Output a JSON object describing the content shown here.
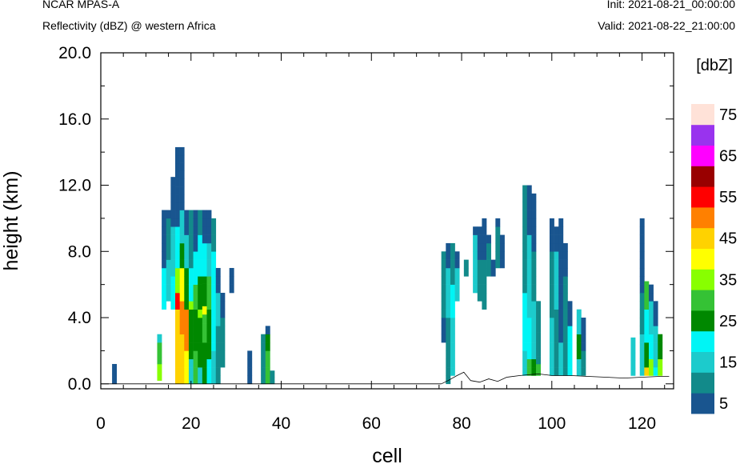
{
  "header": {
    "model": "NCAR MPAS-A",
    "field": "Reflectivity (dBZ) @ western Africa",
    "init": "Init: 2021-08-21_00:00:00",
    "valid": "Valid: 2021-08-22_21:00:00"
  },
  "chart_data": {
    "type": "heatmap",
    "xlabel": "cell",
    "ylabel": "height (km)",
    "xlim": [
      0,
      127
    ],
    "ylim": [
      -0.3,
      20.0
    ],
    "x_ticks": [
      "0",
      "20",
      "40",
      "60",
      "80",
      "100",
      "120"
    ],
    "y_ticks": [
      "0.0",
      "4.0",
      "8.0",
      "12.0",
      "16.0",
      "20.0"
    ],
    "x_tick_values": [
      0,
      20,
      40,
      60,
      80,
      100,
      120
    ],
    "y_tick_values": [
      0,
      4,
      8,
      12,
      16,
      20
    ],
    "grid": false,
    "colorbar": {
      "title": "[dbZ]",
      "levels": [
        5,
        10,
        15,
        20,
        25,
        30,
        35,
        40,
        45,
        50,
        55,
        60,
        65,
        70,
        75
      ],
      "labels": [
        "5",
        "15",
        "25",
        "35",
        "45",
        "55",
        "65",
        "75"
      ],
      "colors": [
        "#19558f",
        "#128a8a",
        "#1ccbcc",
        "#00f5f5",
        "#008800",
        "#35c235",
        "#88ff00",
        "#ffff00",
        "#ffd200",
        "#ff8000",
        "#ff0000",
        "#990000",
        "#ff00ff",
        "#9933ee",
        "#ffe2d8"
      ]
    },
    "cell_width": 1.0,
    "layer_height_km": 0.5,
    "column_bins": [
      {
        "x": 3,
        "bins": [
          [
            0,
            1.2,
            5
          ]
        ]
      },
      {
        "x": 13,
        "bins": [
          [
            0.2,
            1.2,
            35
          ],
          [
            1.2,
            2.5,
            30
          ],
          [
            2.5,
            3.0,
            15
          ]
        ]
      },
      {
        "x": 14,
        "bins": [
          [
            4.5,
            7.0,
            20
          ],
          [
            7.0,
            10.5,
            5
          ]
        ]
      },
      {
        "x": 15,
        "bins": [
          [
            5.0,
            7.5,
            15
          ],
          [
            7.5,
            10.0,
            10
          ],
          [
            10.0,
            10.5,
            5
          ]
        ]
      },
      {
        "x": 16,
        "bins": [
          [
            4.5,
            6.5,
            20
          ],
          [
            6.5,
            9.5,
            15
          ],
          [
            9.5,
            11.5,
            5
          ],
          [
            11.5,
            12.5,
            5
          ]
        ]
      },
      {
        "x": 17,
        "bins": [
          [
            0,
            4.5,
            45
          ],
          [
            4.5,
            5.5,
            55
          ],
          [
            5.5,
            7.0,
            35
          ],
          [
            7.0,
            9.5,
            20
          ],
          [
            9.5,
            14.3,
            5
          ]
        ]
      },
      {
        "x": 18,
        "bins": [
          [
            0,
            3.0,
            45
          ],
          [
            3.0,
            5.0,
            50
          ],
          [
            5.0,
            7.0,
            40
          ],
          [
            7.0,
            8.5,
            25
          ],
          [
            8.5,
            10.5,
            15
          ],
          [
            10.5,
            14.3,
            5
          ]
        ]
      },
      {
        "x": 19,
        "bins": [
          [
            0,
            2.0,
            40
          ],
          [
            2.0,
            4.5,
            50
          ],
          [
            4.5,
            7.0,
            25
          ],
          [
            7.0,
            9.0,
            15
          ],
          [
            9.0,
            10.5,
            5
          ]
        ]
      },
      {
        "x": 20,
        "bins": [
          [
            0,
            1.5,
            15
          ],
          [
            1.5,
            4.5,
            25
          ],
          [
            4.5,
            5.0,
            35
          ],
          [
            5.0,
            7.0,
            20
          ],
          [
            7.0,
            10.5,
            10
          ]
        ]
      },
      {
        "x": 21,
        "bins": [
          [
            0,
            2.0,
            30
          ],
          [
            2.0,
            4.5,
            25
          ],
          [
            4.5,
            6.0,
            30
          ],
          [
            6.0,
            8.0,
            20
          ],
          [
            8.0,
            10.5,
            5
          ]
        ]
      },
      {
        "x": 22,
        "bins": [
          [
            0,
            1.0,
            15
          ],
          [
            1.0,
            4.0,
            25
          ],
          [
            4.0,
            4.5,
            35
          ],
          [
            4.5,
            6.5,
            25
          ],
          [
            6.5,
            9.0,
            20
          ],
          [
            9.0,
            10.5,
            10
          ]
        ]
      },
      {
        "x": 23,
        "bins": [
          [
            0,
            2.5,
            25
          ],
          [
            2.5,
            4.2,
            30
          ],
          [
            4.2,
            4.7,
            40
          ],
          [
            4.7,
            6.5,
            25
          ],
          [
            6.5,
            8.5,
            20
          ],
          [
            8.5,
            10.5,
            5
          ]
        ]
      },
      {
        "x": 24,
        "bins": [
          [
            0,
            1.5,
            20
          ],
          [
            1.5,
            4.5,
            25
          ],
          [
            4.5,
            6.5,
            30
          ],
          [
            6.5,
            8.5,
            15
          ],
          [
            8.5,
            10.5,
            5
          ]
        ]
      },
      {
        "x": 25,
        "bins": [
          [
            0,
            2.0,
            15
          ],
          [
            2.0,
            4.5,
            20
          ],
          [
            4.5,
            8.0,
            20
          ],
          [
            8.0,
            10.0,
            10
          ]
        ]
      },
      {
        "x": 26,
        "bins": [
          [
            0,
            3.5,
            10
          ],
          [
            3.5,
            5.5,
            15
          ],
          [
            5.5,
            7.0,
            5
          ]
        ]
      },
      {
        "x": 27,
        "bins": [
          [
            1.0,
            4.0,
            10
          ],
          [
            4.0,
            5.5,
            5
          ]
        ]
      },
      {
        "x": 29,
        "bins": [
          [
            5.5,
            7.0,
            5
          ]
        ]
      },
      {
        "x": 33,
        "bins": [
          [
            0,
            2.0,
            5
          ]
        ]
      },
      {
        "x": 36,
        "bins": [
          [
            0,
            3.0,
            10
          ]
        ]
      },
      {
        "x": 37,
        "bins": [
          [
            0,
            2.0,
            30
          ],
          [
            2.0,
            3.0,
            25
          ],
          [
            3.0,
            3.5,
            5
          ]
        ]
      },
      {
        "x": 38,
        "bins": [
          [
            0,
            0.8,
            10
          ]
        ]
      },
      {
        "x": 76,
        "bins": [
          [
            2.5,
            4.0,
            5
          ],
          [
            4.0,
            8.0,
            10
          ]
        ]
      },
      {
        "x": 77,
        "bins": [
          [
            0,
            4.0,
            10
          ],
          [
            4.0,
            7.0,
            15
          ],
          [
            7.0,
            8.5,
            5
          ]
        ]
      },
      {
        "x": 78,
        "bins": [
          [
            0.5,
            4.0,
            15
          ],
          [
            4.0,
            6.0,
            20
          ],
          [
            6.0,
            8.5,
            10
          ]
        ]
      },
      {
        "x": 79,
        "bins": [
          [
            5.0,
            7.0,
            15
          ],
          [
            7.0,
            8.0,
            5
          ]
        ]
      },
      {
        "x": 81,
        "bins": [
          [
            6.5,
            7.5,
            10
          ]
        ]
      },
      {
        "x": 83,
        "bins": [
          [
            5.5,
            9.0,
            15
          ],
          [
            9.0,
            9.5,
            5
          ]
        ]
      },
      {
        "x": 84,
        "bins": [
          [
            5.0,
            7.5,
            10
          ],
          [
            7.5,
            9.5,
            5
          ]
        ]
      },
      {
        "x": 85,
        "bins": [
          [
            4.5,
            7.5,
            10
          ],
          [
            7.5,
            10.0,
            5
          ]
        ]
      },
      {
        "x": 86,
        "bins": [
          [
            6.5,
            8.5,
            10
          ],
          [
            8.5,
            9.0,
            5
          ]
        ]
      },
      {
        "x": 87,
        "bins": [
          [
            6.5,
            7.5,
            5
          ]
        ]
      },
      {
        "x": 88,
        "bins": [
          [
            7.0,
            9.5,
            10
          ],
          [
            9.5,
            10.0,
            5
          ]
        ]
      },
      {
        "x": 89,
        "bins": [
          [
            7.0,
            9.0,
            5
          ]
        ]
      },
      {
        "x": 94,
        "bins": [
          [
            0.5,
            2.0,
            15
          ],
          [
            2.0,
            5.5,
            20
          ],
          [
            5.5,
            12.0,
            10
          ]
        ]
      },
      {
        "x": 95,
        "bins": [
          [
            0.5,
            1.5,
            30
          ],
          [
            1.5,
            4.0,
            20
          ],
          [
            4.0,
            9.0,
            15
          ],
          [
            9.0,
            12.0,
            5
          ]
        ]
      },
      {
        "x": 96,
        "bins": [
          [
            0.5,
            1.5,
            25
          ],
          [
            1.5,
            5.0,
            15
          ],
          [
            5.0,
            8.0,
            10
          ],
          [
            8.0,
            11.5,
            5
          ]
        ]
      },
      {
        "x": 97,
        "bins": [
          [
            0.5,
            1.2,
            30
          ],
          [
            1.2,
            5.0,
            10
          ]
        ]
      },
      {
        "x": 100,
        "bins": [
          [
            0.5,
            4.0,
            15
          ],
          [
            4.0,
            8.0,
            10
          ],
          [
            8.0,
            10.0,
            5
          ]
        ]
      },
      {
        "x": 101,
        "bins": [
          [
            0.5,
            4.5,
            10
          ],
          [
            4.5,
            8.0,
            15
          ],
          [
            8.0,
            9.5,
            5
          ]
        ]
      },
      {
        "x": 102,
        "bins": [
          [
            0.5,
            2.5,
            15
          ],
          [
            2.5,
            10.0,
            5
          ]
        ]
      },
      {
        "x": 103,
        "bins": [
          [
            0.5,
            6.5,
            10
          ],
          [
            6.5,
            8.5,
            5
          ]
        ]
      },
      {
        "x": 104,
        "bins": [
          [
            0.5,
            3.5,
            20
          ],
          [
            3.5,
            5.0,
            5
          ]
        ]
      },
      {
        "x": 106,
        "bins": [
          [
            0.5,
            1.5,
            15
          ],
          [
            1.5,
            3.0,
            25
          ],
          [
            3.0,
            4.5,
            15
          ]
        ]
      },
      {
        "x": 107,
        "bins": [
          [
            0.5,
            2.0,
            10
          ],
          [
            2.0,
            4.0,
            5
          ]
        ]
      },
      {
        "x": 118,
        "bins": [
          [
            0.5,
            2.8,
            15
          ]
        ]
      },
      {
        "x": 120,
        "bins": [
          [
            0.5,
            3.0,
            15
          ],
          [
            3.0,
            5.5,
            10
          ],
          [
            5.5,
            10.0,
            5
          ]
        ]
      },
      {
        "x": 121,
        "bins": [
          [
            0.5,
            1.0,
            45
          ],
          [
            1.0,
            2.5,
            25
          ],
          [
            2.5,
            4.5,
            20
          ],
          [
            4.5,
            6.2,
            30
          ]
        ]
      },
      {
        "x": 122,
        "bins": [
          [
            0.5,
            1.5,
            35
          ],
          [
            1.5,
            3.0,
            20
          ],
          [
            3.0,
            5.0,
            15
          ],
          [
            5.0,
            6.0,
            5
          ]
        ]
      },
      {
        "x": 123,
        "bins": [
          [
            0.5,
            1.0,
            20
          ],
          [
            1.0,
            3.5,
            15
          ],
          [
            3.5,
            5.0,
            5
          ]
        ]
      },
      {
        "x": 124,
        "bins": [
          [
            0.5,
            1.5,
            35
          ],
          [
            1.5,
            3.0,
            25
          ]
        ]
      }
    ],
    "terrain_profile": [
      [
        75.5,
        0
      ],
      [
        77,
        0.2
      ],
      [
        79,
        0.5
      ],
      [
        80.5,
        0.7
      ],
      [
        82,
        0.2
      ],
      [
        84,
        0.1
      ],
      [
        86,
        0.3
      ],
      [
        88,
        0.15
      ],
      [
        90,
        0.4
      ],
      [
        93,
        0.5
      ],
      [
        97,
        0.6
      ],
      [
        100,
        0.5
      ],
      [
        104,
        0.5
      ],
      [
        108,
        0.45
      ],
      [
        112,
        0.4
      ],
      [
        116,
        0.35
      ],
      [
        120,
        0.4
      ],
      [
        124,
        0.45
      ],
      [
        126,
        0.45
      ]
    ]
  }
}
